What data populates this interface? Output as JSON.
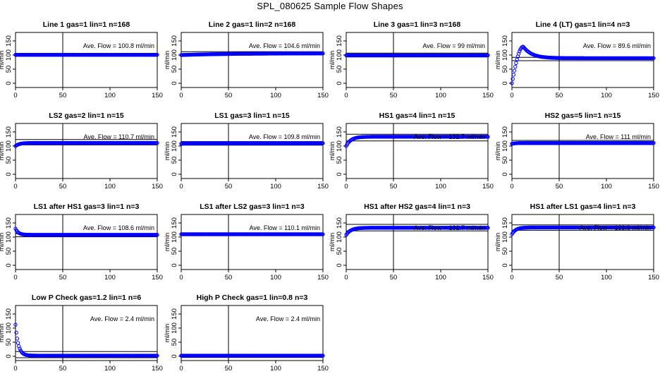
{
  "title": "SPL_080625  Sample Flow Shapes",
  "colors": {
    "points": "#0000ff",
    "axis": "#000000",
    "background": "#ffffff"
  },
  "chart_data": [
    {
      "type": "scatter",
      "title": "Line 1 gas=1 lin=1 n=168",
      "ylabel": "ml/min",
      "annotation": "Ave. Flow =  100.8  ml/min",
      "xlim": [
        0,
        150
      ],
      "ylim": [
        -15,
        180
      ],
      "xticks": [
        0,
        50,
        100,
        150
      ],
      "yticks": [
        0,
        50,
        100,
        150
      ],
      "vline": 50,
      "hlines": [
        100.8,
        100.8
      ],
      "grid": false,
      "series": [
        {
          "shape": "flat",
          "start": 100.8,
          "level": 100.8
        }
      ]
    },
    {
      "type": "scatter",
      "title": "Line 2 gas=1 lin=2 n=168",
      "ylabel": "ml/min",
      "annotation": "Ave. Flow =  104.6  ml/min",
      "xlim": [
        0,
        150
      ],
      "ylim": [
        -15,
        180
      ],
      "xticks": [
        0,
        50,
        100,
        150
      ],
      "yticks": [
        0,
        50,
        100,
        150
      ],
      "vline": 50,
      "hlines": [
        112,
        104.6
      ],
      "grid": false,
      "series": [
        {
          "shape": "rise",
          "start": 100,
          "level": 106,
          "tau": 50
        }
      ]
    },
    {
      "type": "scatter",
      "title": "Line 3 gas=1 lin=3 n=168",
      "ylabel": "ml/min",
      "annotation": "Ave. Flow =  99  ml/min",
      "xlim": [
        0,
        150
      ],
      "ylim": [
        -15,
        180
      ],
      "xticks": [
        0,
        50,
        100,
        150
      ],
      "yticks": [
        0,
        50,
        100,
        150
      ],
      "vline": 50,
      "hlines": [
        107,
        93
      ],
      "grid": false,
      "series": [
        {
          "shape": "flat",
          "start": 103,
          "level": 99
        }
      ]
    },
    {
      "type": "scatter",
      "title": "Line 4 (LT) gas=1 lin=4 n=3",
      "ylabel": "ml/min",
      "annotation": "Ave. Flow =  89.6  ml/min",
      "xlim": [
        0,
        150
      ],
      "ylim": [
        -15,
        180
      ],
      "xticks": [
        0,
        50,
        100,
        150
      ],
      "yticks": [
        0,
        50,
        100,
        150
      ],
      "vline": 50,
      "hlines": [
        92,
        80
      ],
      "grid": false,
      "series": [
        {
          "shape": "overshoot",
          "start": 0,
          "peak": 130,
          "level": 89,
          "peak_x": 12
        }
      ]
    },
    {
      "type": "scatter",
      "title": "LS2 gas=2 lin=1 n=15",
      "ylabel": "ml/min",
      "annotation": "Ave. Flow =  110.7  ml/min",
      "xlim": [
        0,
        150
      ],
      "ylim": [
        -15,
        180
      ],
      "xticks": [
        0,
        50,
        100,
        150
      ],
      "yticks": [
        0,
        50,
        100,
        150
      ],
      "vline": 50,
      "hlines": [
        123,
        104
      ],
      "grid": false,
      "series": [
        {
          "shape": "rise",
          "start": 100,
          "level": 111,
          "tau": 4
        }
      ]
    },
    {
      "type": "scatter",
      "title": "LS1 gas=3 lin=1 n=15",
      "ylabel": "ml/min",
      "annotation": "Ave. Flow =  109.8  ml/min",
      "xlim": [
        0,
        150
      ],
      "ylim": [
        -15,
        180
      ],
      "xticks": [
        0,
        50,
        100,
        150
      ],
      "yticks": [
        0,
        50,
        100,
        150
      ],
      "vline": 50,
      "hlines": [
        116,
        103
      ],
      "grid": false,
      "series": [
        {
          "shape": "rise",
          "start": 108,
          "level": 110,
          "tau": 4
        }
      ]
    },
    {
      "type": "scatter",
      "title": "HS1 gas=4 lin=1 n=15",
      "ylabel": "ml/min",
      "annotation": "Ave. Flow =  132.7  ml/min",
      "xlim": [
        0,
        150
      ],
      "ylim": [
        -15,
        180
      ],
      "xticks": [
        0,
        50,
        100,
        150
      ],
      "yticks": [
        0,
        50,
        100,
        150
      ],
      "vline": 50,
      "hlines": [
        142,
        118
      ],
      "grid": false,
      "series": [
        {
          "shape": "rise",
          "start": 100,
          "level": 133,
          "tau": 5
        }
      ]
    },
    {
      "type": "scatter",
      "title": "HS2 gas=5 lin=1 n=15",
      "ylabel": "ml/min",
      "annotation": "Ave. Flow =  111  ml/min",
      "xlim": [
        0,
        150
      ],
      "ylim": [
        -15,
        180
      ],
      "xticks": [
        0,
        50,
        100,
        150
      ],
      "yticks": [
        0,
        50,
        100,
        150
      ],
      "vline": 50,
      "hlines": [
        120,
        105
      ],
      "grid": false,
      "series": [
        {
          "shape": "rise",
          "start": 108,
          "level": 111,
          "tau": 4
        }
      ]
    },
    {
      "type": "scatter",
      "title": "LS1 after HS1 gas=3 lin=1 n=3",
      "ylabel": "ml/min",
      "annotation": "Ave. Flow =  108.6  ml/min",
      "xlim": [
        0,
        150
      ],
      "ylim": [
        -15,
        180
      ],
      "xticks": [
        0,
        50,
        100,
        150
      ],
      "yticks": [
        0,
        50,
        100,
        150
      ],
      "vline": 50,
      "hlines": [
        112,
        101
      ],
      "grid": false,
      "series": [
        {
          "shape": "decay",
          "start": 130,
          "level": 108,
          "tau": 3
        }
      ]
    },
    {
      "type": "scatter",
      "title": "LS1 after LS2 gas=3 lin=1 n=3",
      "ylabel": "ml/min",
      "annotation": "Ave. Flow =  110.1  ml/min",
      "xlim": [
        0,
        150
      ],
      "ylim": [
        -15,
        180
      ],
      "xticks": [
        0,
        50,
        100,
        150
      ],
      "yticks": [
        0,
        50,
        100,
        150
      ],
      "vline": 50,
      "hlines": [
        115,
        108
      ],
      "grid": false,
      "series": [
        {
          "shape": "flat",
          "start": 110,
          "level": 110
        }
      ]
    },
    {
      "type": "scatter",
      "title": "HS1 after HS2 gas=4 lin=1 n=3",
      "ylabel": "ml/min",
      "annotation": "Ave. Flow =  132.7  ml/min",
      "xlim": [
        0,
        150
      ],
      "ylim": [
        -15,
        180
      ],
      "xticks": [
        0,
        50,
        100,
        150
      ],
      "yticks": [
        0,
        50,
        100,
        150
      ],
      "vline": 50,
      "hlines": [
        145,
        122
      ],
      "grid": false,
      "series": [
        {
          "shape": "rise",
          "start": 108,
          "level": 133,
          "tau": 5
        }
      ]
    },
    {
      "type": "scatter",
      "title": "HS1 after LS1 gas=4 lin=1 n=3",
      "ylabel": "ml/min",
      "annotation": "Ave. Flow =  133.9  ml/min",
      "xlim": [
        0,
        150
      ],
      "ylim": [
        -15,
        180
      ],
      "xticks": [
        0,
        50,
        100,
        150
      ],
      "yticks": [
        0,
        50,
        100,
        150
      ],
      "vline": 50,
      "hlines": [
        143,
        124
      ],
      "grid": false,
      "series": [
        {
          "shape": "rise",
          "start": 110,
          "level": 134,
          "tau": 4
        }
      ]
    },
    {
      "type": "scatter",
      "title": "Low P Check gas=1.2 lin=1 n=6",
      "ylabel": "ml/min",
      "annotation": "Ave. Flow =  2.4  ml/min",
      "xlim": [
        0,
        150
      ],
      "ylim": [
        -15,
        180
      ],
      "xticks": [
        0,
        50,
        100,
        150
      ],
      "yticks": [
        0,
        50,
        100,
        150
      ],
      "vline": 50,
      "hlines": [
        17,
        -5
      ],
      "grid": false,
      "series": [
        {
          "shape": "decay",
          "start": 112,
          "level": 2.4,
          "tau": 3
        }
      ]
    },
    {
      "type": "scatter",
      "title": "High P Check gas=1 lin=0.8 n=3",
      "ylabel": "ml/min",
      "annotation": "Ave. Flow =  2.4  ml/min",
      "xlim": [
        0,
        150
      ],
      "ylim": [
        -15,
        180
      ],
      "xticks": [
        0,
        50,
        100,
        150
      ],
      "yticks": [
        0,
        50,
        100,
        150
      ],
      "vline": 50,
      "hlines": [
        4,
        -4
      ],
      "grid": false,
      "series": [
        {
          "shape": "flat",
          "start": 2.4,
          "level": 2.4
        }
      ]
    }
  ]
}
